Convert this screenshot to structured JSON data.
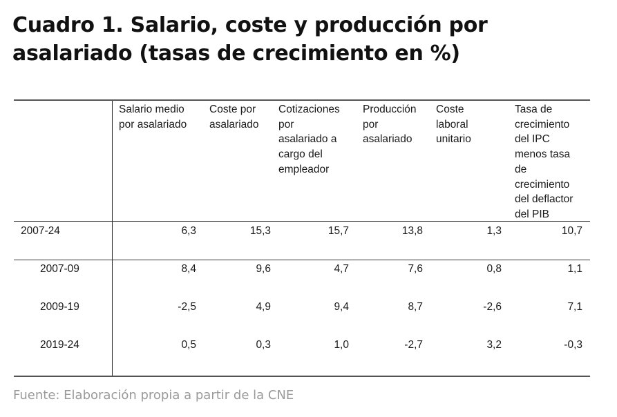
{
  "title": "Cuadro 1. Salario, coste y producción por asalariado (tasas de crecimiento en %)",
  "columns": [
    "Salario medio\npor asalariado",
    "Coste por\nasalariado",
    "Cotizaciones\npor\nasalariado a\ncargo del\nempleador",
    "Producción\npor\nasalariado",
    "Coste\nlaboral\nunitario",
    "Tasa de\ncrecimiento\ndel IPC\nmenos tasa\nde\ncrecimiento\ndel deflactor\ndel PIB"
  ],
  "rows": [
    {
      "period": "2007-24",
      "values": [
        "6,3",
        "15,3",
        "15,7",
        "13,8",
        "1,3",
        "10,7"
      ]
    },
    {
      "period": "2007-09",
      "values": [
        "8,4",
        "9,6",
        "4,7",
        "7,6",
        "0,8",
        "1,1"
      ]
    },
    {
      "period": "2009-19",
      "values": [
        "-2,5",
        "4,9",
        "9,4",
        "8,7",
        "-2,6",
        "7,1"
      ]
    },
    {
      "period": "2019-24",
      "values": [
        "0,5",
        "0,3",
        "1,0",
        "-2,7",
        "3,2",
        "-0,3"
      ]
    }
  ],
  "source": "Fuente: Elaboración propia a partir de la CNE"
}
